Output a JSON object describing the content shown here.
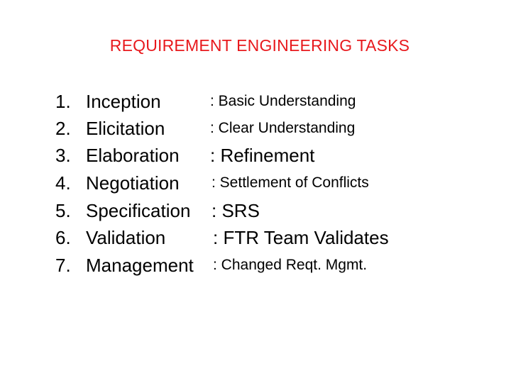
{
  "slide": {
    "title": "REQUIREMENT ENGINEERING TASKS",
    "title_color": "#e8191d",
    "items": [
      {
        "number": "1.",
        "term": "Inception",
        "description": ": Basic Understanding"
      },
      {
        "number": "2.",
        "term": "Elicitation",
        "description": ": Clear Understanding"
      },
      {
        "number": "3.",
        "term": "Elaboration",
        "description": ": Refinement"
      },
      {
        "number": "4.",
        "term": "Negotiation",
        "description": ": Settlement of Conflicts"
      },
      {
        "number": "5.",
        "term": "Specification",
        "description": ": SRS"
      },
      {
        "number": "6.",
        "term": "Validation",
        "description": ": FTR Team Validates"
      },
      {
        "number": "7.",
        "term": "Management",
        "description": ": Changed Reqt. Mgmt."
      }
    ]
  }
}
